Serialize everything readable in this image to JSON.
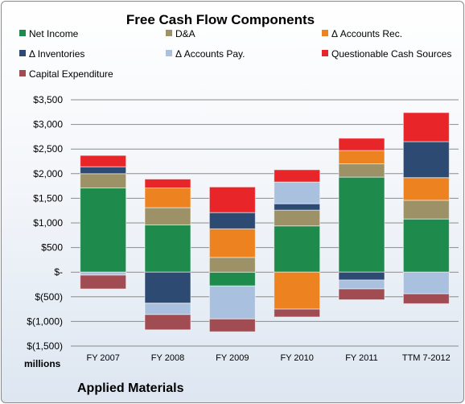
{
  "chart_data": {
    "type": "bar",
    "stacked": true,
    "title": "Free Cash Flow Components",
    "company": "Applied Materials",
    "unit_label": "millions",
    "categories": [
      "FY 2007",
      "FY 2008",
      "FY 2009",
      "FY 2010",
      "FY 2011",
      "TTM 7-2012"
    ],
    "ylim": [
      -1500,
      3500
    ],
    "y_ticks": [
      3500,
      3000,
      2500,
      2000,
      1500,
      1000,
      500,
      0,
      -500,
      -1000,
      -1500
    ],
    "y_tick_labels": [
      "$3,500",
      "$3,000",
      "$2,500",
      "$2,000",
      "$1,500",
      "$1,000",
      "$500",
      "$-",
      "$(500)",
      "$(1,000)",
      "$(1,500)"
    ],
    "grid": true,
    "legend_position": "top",
    "series": [
      {
        "name": "Net Income",
        "color": "#1e8a4c",
        "values": [
          1710,
          960,
          -280,
          940,
          1930,
          1080
        ]
      },
      {
        "name": "D&A",
        "color": "#9c9167",
        "values": [
          290,
          350,
          300,
          320,
          270,
          380
        ]
      },
      {
        "name": "Δ Accounts Rec.",
        "color": "#ec8320",
        "values": [
          0,
          400,
          580,
          0,
          270,
          460
        ]
      },
      {
        "name": "Δ Inventories",
        "color": "#2d4a73",
        "values": [
          140,
          -630,
          330,
          130,
          -160,
          730
        ]
      },
      {
        "name": "Δ Accounts Pay.",
        "color": "#a9c0df",
        "values": [
          -60,
          -230,
          -670,
          440,
          -180,
          -440
        ]
      },
      {
        "name": "Questionable Cash Sources",
        "color": "#e8262a",
        "values": [
          230,
          180,
          520,
          250,
          250,
          590
        ]
      },
      {
        "name": "Capital Expenditure",
        "color": "#a14b53",
        "values": [
          -280,
          -310,
          -260,
          -160,
          -220,
          -200
        ]
      }
    ],
    "extra_negatives": {
      "series": "Δ Accounts Rec.",
      "values": [
        0,
        0,
        0,
        -750,
        0,
        0
      ]
    }
  }
}
